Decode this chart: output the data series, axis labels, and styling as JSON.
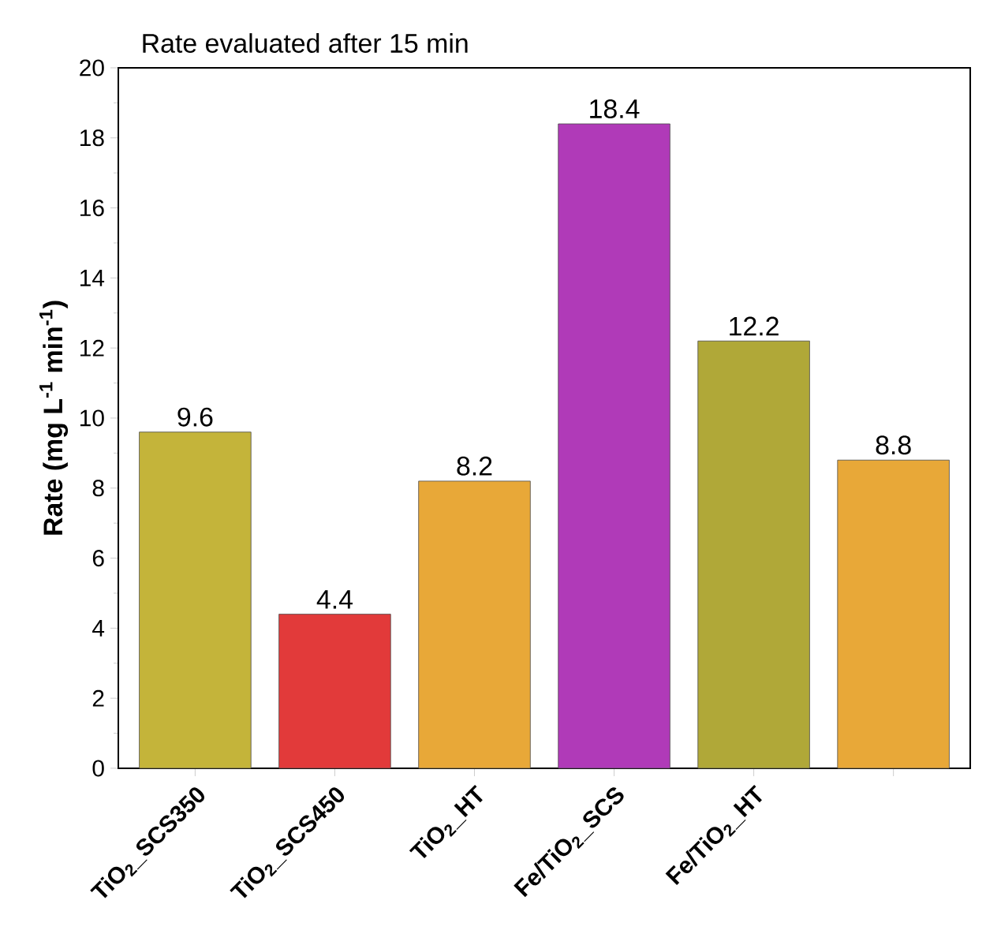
{
  "chart_data": {
    "type": "bar",
    "title": "Rate evaluated after 15 min",
    "ylabel": "Rate (mg L$^{-1}$ min$^{-1}$)",
    "categories": [
      "TiO$_{2}$_SCS350",
      "TiO$_{2}$_SCS450",
      "TiO$_{2}$_HT",
      "Fe/TiO$_{2}$_SCS",
      "Fe/TiO$_{2}$_HT",
      null
    ],
    "values": [
      9.6,
      4.4,
      8.2,
      18.4,
      12.2,
      8.8
    ],
    "colors": [
      "#c4b43a",
      "#e23a3a",
      "#e8a838",
      "#b03ab8",
      "#b0a838",
      "#e8a838"
    ],
    "ylim": [
      0,
      20
    ],
    "yticks": [
      0,
      2,
      4,
      6,
      8,
      10,
      12,
      14,
      16,
      18,
      20
    ],
    "data_labels": true
  }
}
